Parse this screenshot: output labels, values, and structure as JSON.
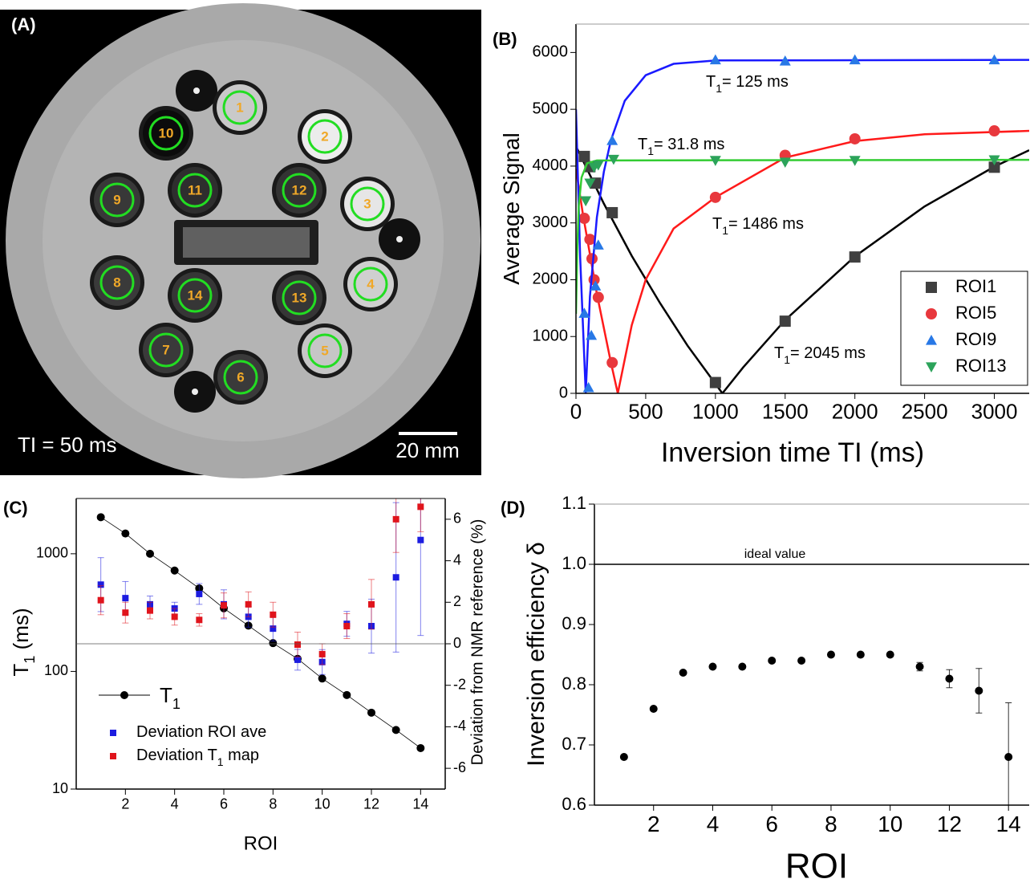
{
  "panel_a": {
    "label": "(A)",
    "roi_labels": [
      "1",
      "2",
      "3",
      "4",
      "5",
      "6",
      "7",
      "8",
      "9",
      "10",
      "11",
      "12",
      "13",
      "14"
    ],
    "ti_text": "TI = 50 ms",
    "scale_text": "20 mm"
  },
  "chart_data": [
    {
      "type": "scatter",
      "panel_label": "(B)",
      "xlabel": "Inversion time TI (ms)",
      "ylabel": "Average Signal",
      "xlim": [
        0,
        3250
      ],
      "ylim": [
        0,
        6500
      ],
      "xticks": [
        0,
        500,
        1000,
        1500,
        2000,
        2500,
        3000
      ],
      "yticks": [
        0,
        1000,
        2000,
        3000,
        4000,
        5000,
        6000
      ],
      "legend": "lower right",
      "series": [
        {
          "name": "ROI1",
          "color": "#404040",
          "fit_color": "#000000",
          "marker": "square",
          "x": [
            60,
            100,
            140,
            260,
            1000,
            1500,
            2000,
            3000
          ],
          "values": [
            4170,
            3990,
            3700,
            3180,
            190,
            1270,
            2400,
            3980
          ],
          "fit_x": [
            0,
            200,
            400,
            600,
            800,
            1050,
            1200,
            1500,
            2000,
            2500,
            3000,
            3250
          ],
          "fit_values": [
            4350,
            3340,
            2420,
            1600,
            840,
            0,
            460,
            1290,
            2410,
            3290,
            3990,
            4280
          ]
        },
        {
          "name": "ROI5",
          "color": "#e8383d",
          "fit_color": "#ff1a1a",
          "marker": "circle",
          "x": [
            60,
            100,
            115,
            130,
            160,
            260,
            1000,
            1500,
            2000,
            3000
          ],
          "values": [
            3080,
            2710,
            2370,
            2000,
            1690,
            540,
            3450,
            4190,
            4480,
            4620
          ],
          "fit_x": [
            0,
            50,
            100,
            150,
            200,
            250,
            300,
            400,
            500,
            700,
            1000,
            1500,
            2000,
            2500,
            3250
          ],
          "fit_values": [
            3950,
            3150,
            2450,
            1750,
            1150,
            550,
            0,
            1200,
            2000,
            2900,
            3450,
            4150,
            4440,
            4560,
            4620
          ]
        },
        {
          "name": "ROI9",
          "color": "#2878e6",
          "fit_color": "#1a1aff",
          "marker": "triangle-up",
          "x": [
            60,
            90,
            110,
            140,
            160,
            260,
            1000,
            1500,
            2000,
            3000
          ],
          "values": [
            1410,
            100,
            1020,
            1890,
            2610,
            4450,
            5870,
            5850,
            5870,
            5870
          ],
          "fit_x": [
            0,
            30,
            70,
            100,
            150,
            200,
            250,
            350,
            500,
            700,
            1000,
            3250
          ],
          "fit_values": [
            5000,
            2400,
            0,
            1700,
            3100,
            3900,
            4450,
            5150,
            5600,
            5800,
            5860,
            5870
          ]
        },
        {
          "name": "ROI13",
          "color": "#2ca35a",
          "fit_color": "#33cc33",
          "marker": "triangle-down",
          "x": [
            70,
            100,
            130,
            160,
            270,
            1000,
            1500,
            2000,
            3000
          ],
          "values": [
            3390,
            3700,
            3980,
            4020,
            4120,
            4100,
            4070,
            4100,
            4110
          ],
          "fit_x": [
            0,
            10,
            20,
            40,
            80,
            150,
            3250
          ],
          "fit_values": [
            1400,
            2600,
            3300,
            3800,
            4050,
            4100,
            4110
          ]
        }
      ],
      "annotations": [
        {
          "text": "T",
          "sub": "1",
          "rest": "= 125 ms"
        },
        {
          "text": "T",
          "sub": "1",
          "rest": "= 31.8 ms"
        },
        {
          "text": "T",
          "sub": "1",
          "rest": "= 1486 ms"
        },
        {
          "text": "T",
          "sub": "1",
          "rest": "= 2045 ms"
        }
      ]
    },
    {
      "type": "line",
      "panel_label": "(C)",
      "xlabel": "ROI",
      "ylabel": "T",
      "ylabel_sub": "1",
      "ylabel_tail": " (ms)",
      "y2label": "Deviation from NMR reference (%)",
      "log_y": true,
      "xlim": [
        0,
        15
      ],
      "ylim": [
        10,
        2950
      ],
      "y2lim": [
        -7,
        7
      ],
      "xticks": [
        2,
        4,
        6,
        8,
        10,
        12,
        14
      ],
      "yticks": [
        10,
        100,
        1000
      ],
      "y2ticks": [
        -6,
        -4,
        -2,
        0,
        2,
        4,
        6
      ],
      "legend": "lower left",
      "hline": {
        "axis": "y2",
        "value": 0
      },
      "x": [
        1,
        2,
        3,
        4,
        5,
        6,
        7,
        8,
        9,
        10,
        11,
        12,
        13,
        14
      ],
      "series": [
        {
          "type": "line",
          "name": "T",
          "name_sub": "1",
          "color": "#000000",
          "marker": "circle",
          "values": [
            2045,
            1486,
            1000,
            720,
            508,
            344,
            245,
            174,
            128,
            87,
            63,
            44.6,
            31.8,
            22.3
          ]
        },
        {
          "type": "scatter",
          "axis": "y2",
          "name": "Deviation ROI ave",
          "color": "#1c1ce0",
          "marker": "square",
          "values": [
            2.85,
            2.2,
            1.9,
            1.7,
            2.4,
            1.9,
            1.3,
            0.73,
            -0.77,
            -0.88,
            0.96,
            0.85,
            3.2,
            5.0
          ],
          "errors": [
            1.3,
            0.8,
            0.4,
            0.3,
            0.5,
            0.7,
            0.5,
            0.6,
            0.5,
            0.6,
            0.6,
            1.3,
            3.6,
            4.6
          ]
        },
        {
          "type": "scatter",
          "axis": "y2",
          "name": "Deviation T",
          "name_sub": "1",
          "name_tail": " map",
          "color": "#e0141c",
          "marker": "square",
          "values": [
            2.1,
            1.5,
            1.6,
            1.3,
            1.15,
            1.85,
            1.9,
            1.4,
            -0.04,
            -0.5,
            0.85,
            1.9,
            6.0,
            6.6
          ],
          "errors": [
            0.7,
            0.5,
            0.4,
            0.4,
            0.3,
            0.6,
            0.6,
            0.6,
            0.6,
            0.5,
            0.6,
            1.2,
            1.6,
            1.2
          ]
        }
      ]
    },
    {
      "type": "scatter",
      "panel_label": "(D)",
      "xlabel": "ROI",
      "ylabel": "Inversion efficiency δ",
      "xlim": [
        0,
        14.7
      ],
      "ylim": [
        0.6,
        1.1
      ],
      "xticks": [
        2,
        4,
        6,
        8,
        10,
        12,
        14
      ],
      "yticks": [
        0.6,
        0.7,
        0.8,
        0.9,
        {
          "value": 1,
          "label": "1.0"
        },
        1.1
      ],
      "hline": {
        "value": 1,
        "label": "ideal value"
      },
      "x": [
        1,
        2,
        3,
        4,
        5,
        6,
        7,
        8,
        9,
        10,
        11,
        12,
        13,
        14
      ],
      "series": [
        {
          "color": "#000000",
          "marker": "circle",
          "values": [
            0.68,
            0.76,
            0.82,
            0.83,
            0.83,
            0.84,
            0.84,
            0.85,
            0.85,
            0.85,
            0.83,
            0.81,
            0.79,
            0.68
          ],
          "errors": [
            0.003,
            0.003,
            0.003,
            0.003,
            0.003,
            0.003,
            0.003,
            0.003,
            0.003,
            0.003,
            0.007,
            0.015,
            0.037,
            0.09
          ]
        }
      ]
    }
  ]
}
